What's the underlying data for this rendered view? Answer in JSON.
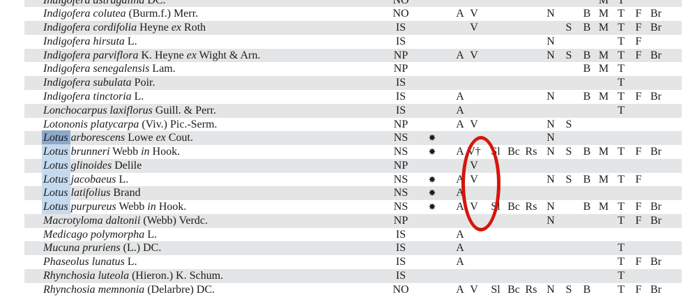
{
  "annotations": {
    "ellipse_color": "#d6150b",
    "search_highlight": {
      "word": "Lotus",
      "current_color": "#8ca8cb",
      "match_color": "#c5d9ef"
    },
    "zebra_color": "#e4e5e6"
  },
  "table": {
    "star_glyph": "✸",
    "dagger_glyph": "†",
    "rows": [
      {
        "name": [
          {
            "t": "Indigofera astragalina",
            "i": 1
          },
          {
            "t": " DC.",
            "i": 0
          }
        ],
        "status": "NO",
        "star": false,
        "marks": [
          "",
          "",
          "",
          "",
          "",
          "",
          "",
          "",
          "M",
          "T",
          "",
          ""
        ]
      },
      {
        "name": [
          {
            "t": "Indigofera colutea",
            "i": 1
          },
          {
            "t": " (Burm.f.) Merr.",
            "i": 0
          }
        ],
        "status": "NO",
        "star": false,
        "marks": [
          "A",
          "V",
          "",
          "",
          "",
          "N",
          "",
          "B",
          "M",
          "T",
          "F",
          "Br"
        ]
      },
      {
        "name": [
          {
            "t": "Indigofera cordifolia",
            "i": 1
          },
          {
            "t": " Heyne ",
            "i": 0
          },
          {
            "t": "ex",
            "i": 1
          },
          {
            "t": " Roth",
            "i": 0
          }
        ],
        "status": "IS",
        "star": false,
        "marks": [
          "",
          "V",
          "",
          "",
          "",
          "",
          "S",
          "B",
          "M",
          "T",
          "F",
          "Br"
        ]
      },
      {
        "name": [
          {
            "t": "Indigofera hirsuta",
            "i": 1
          },
          {
            "t": " L.",
            "i": 0
          }
        ],
        "status": "IS",
        "star": false,
        "marks": [
          "",
          "",
          "",
          "",
          "",
          "N",
          "",
          "",
          "",
          "T",
          "F",
          ""
        ]
      },
      {
        "name": [
          {
            "t": "Indigofera parviflora",
            "i": 1
          },
          {
            "t": " K. Heyne ",
            "i": 0
          },
          {
            "t": "ex",
            "i": 1
          },
          {
            "t": " Wight & Arn.",
            "i": 0
          }
        ],
        "status": "NP",
        "star": false,
        "marks": [
          "A",
          "V",
          "",
          "",
          "",
          "N",
          "S",
          "B",
          "M",
          "T",
          "F",
          "Br"
        ]
      },
      {
        "name": [
          {
            "t": "Indigofera senegalensis",
            "i": 1
          },
          {
            "t": " Lam.",
            "i": 0
          }
        ],
        "status": "NP",
        "star": false,
        "marks": [
          "",
          "",
          "",
          "",
          "",
          "",
          "",
          "B",
          "M",
          "T",
          "",
          ""
        ]
      },
      {
        "name": [
          {
            "t": "Indigofera subulata",
            "i": 1
          },
          {
            "t": " Poir.",
            "i": 0
          }
        ],
        "status": "IS",
        "star": false,
        "marks": [
          "",
          "",
          "",
          "",
          "",
          "",
          "",
          "",
          "",
          "T",
          "",
          ""
        ]
      },
      {
        "name": [
          {
            "t": "Indigofera tinctoria",
            "i": 1
          },
          {
            "t": " L.",
            "i": 0
          }
        ],
        "status": "IS",
        "star": false,
        "marks": [
          "A",
          "",
          "",
          "",
          "",
          "N",
          "",
          "B",
          "M",
          "T",
          "F",
          "Br"
        ]
      },
      {
        "name": [
          {
            "t": "Lonchocarpus laxiflorus",
            "i": 1
          },
          {
            "t": " Guill. & Perr.",
            "i": 0
          }
        ],
        "status": "IS",
        "star": false,
        "marks": [
          "A",
          "",
          "",
          "",
          "",
          "",
          "",
          "",
          "",
          "T",
          "",
          ""
        ]
      },
      {
        "name": [
          {
            "t": "Lotononis platycarpa",
            "i": 1
          },
          {
            "t": " (Viv.) Pic.-Serm.",
            "i": 0
          }
        ],
        "status": "NP",
        "star": false,
        "marks": [
          "A",
          "V",
          "",
          "",
          "",
          "N",
          "S",
          "",
          "",
          "",
          "",
          ""
        ]
      },
      {
        "name": [
          {
            "t": "Lotus",
            "i": 1,
            "h": "current"
          },
          {
            "t": " arborescens",
            "i": 1
          },
          {
            "t": " Lowe ",
            "i": 0
          },
          {
            "t": "ex",
            "i": 1
          },
          {
            "t": " Cout.",
            "i": 0
          }
        ],
        "status": "NS",
        "star": true,
        "marks": [
          "",
          "",
          "",
          "",
          "",
          "N",
          "",
          "",
          "",
          "",
          "",
          ""
        ]
      },
      {
        "name": [
          {
            "t": "Lotus",
            "i": 1,
            "h": "match"
          },
          {
            "t": " brunneri",
            "i": 1
          },
          {
            "t": " Webb ",
            "i": 0
          },
          {
            "t": "in",
            "i": 1
          },
          {
            "t": " Hook.",
            "i": 0
          }
        ],
        "status": "NS",
        "star": true,
        "marks": [
          "A",
          "V†",
          "Sl",
          "Bc",
          "Rs",
          "N",
          "S",
          "B",
          "M",
          "T",
          "F",
          "Br"
        ]
      },
      {
        "name": [
          {
            "t": "Lotus",
            "i": 1,
            "h": "match"
          },
          {
            "t": " glinoides",
            "i": 1
          },
          {
            "t": " Delile",
            "i": 0
          }
        ],
        "status": "NP",
        "star": false,
        "marks": [
          "",
          "V",
          "",
          "",
          "",
          "",
          "",
          "",
          "",
          "",
          "",
          ""
        ]
      },
      {
        "name": [
          {
            "t": "Lotus",
            "i": 1,
            "h": "match"
          },
          {
            "t": " jacobaeus",
            "i": 1
          },
          {
            "t": " L.",
            "i": 0
          }
        ],
        "status": "NS",
        "star": true,
        "marks": [
          "A",
          "V",
          "",
          "",
          "",
          "N",
          "S",
          "B",
          "M",
          "T",
          "F",
          ""
        ]
      },
      {
        "name": [
          {
            "t": "Lotus",
            "i": 1,
            "h": "match"
          },
          {
            "t": " latifolius",
            "i": 1
          },
          {
            "t": " Brand",
            "i": 0
          }
        ],
        "status": "NS",
        "star": true,
        "marks": [
          "A",
          "",
          "",
          "",
          "",
          "",
          "",
          "",
          "",
          "",
          "",
          ""
        ]
      },
      {
        "name": [
          {
            "t": "Lotus",
            "i": 1,
            "h": "match"
          },
          {
            "t": " purpureus",
            "i": 1
          },
          {
            "t": " Webb ",
            "i": 0
          },
          {
            "t": "in",
            "i": 1
          },
          {
            "t": " Hook.",
            "i": 0
          }
        ],
        "status": "NS",
        "star": true,
        "marks": [
          "A",
          "V",
          "Sl",
          "Bc",
          "Rs",
          "N",
          "",
          "B",
          "M",
          "T",
          "F",
          "Br"
        ]
      },
      {
        "name": [
          {
            "t": "Macrotyloma daltonii",
            "i": 1
          },
          {
            "t": " (Webb) Verdc.",
            "i": 0
          }
        ],
        "status": "NP",
        "star": false,
        "marks": [
          "",
          "",
          "",
          "",
          "",
          "N",
          "",
          "",
          "",
          "T",
          "F",
          "Br"
        ]
      },
      {
        "name": [
          {
            "t": "Medicago polymorpha",
            "i": 1
          },
          {
            "t": " L.",
            "i": 0
          }
        ],
        "status": "IS",
        "star": false,
        "marks": [
          "A",
          "",
          "",
          "",
          "",
          "",
          "",
          "",
          "",
          "",
          "",
          ""
        ]
      },
      {
        "name": [
          {
            "t": "Mucuna pruriens",
            "i": 1
          },
          {
            "t": " (L.) DC.",
            "i": 0
          }
        ],
        "status": "IS",
        "star": false,
        "marks": [
          "A",
          "",
          "",
          "",
          "",
          "",
          "",
          "",
          "",
          "T",
          "",
          ""
        ]
      },
      {
        "name": [
          {
            "t": "Phaseolus lunatus",
            "i": 1
          },
          {
            "t": " L.",
            "i": 0
          }
        ],
        "status": "IS",
        "star": false,
        "marks": [
          "A",
          "",
          "",
          "",
          "",
          "",
          "",
          "",
          "",
          "T",
          "F",
          "Br"
        ]
      },
      {
        "name": [
          {
            "t": "Rhynchosia luteola",
            "i": 1
          },
          {
            "t": " (Hieron.) K. Schum.",
            "i": 0
          }
        ],
        "status": "IS",
        "star": false,
        "marks": [
          "",
          "",
          "",
          "",
          "",
          "",
          "",
          "",
          "",
          "T",
          "",
          ""
        ]
      },
      {
        "name": [
          {
            "t": "Rhynchosia memnonia",
            "i": 1
          },
          {
            "t": " (Delarbre) DC.",
            "i": 0
          }
        ],
        "status": "NO",
        "star": false,
        "marks": [
          "A",
          "V",
          "Sl",
          "Bc",
          "Rs",
          "N",
          "S",
          "B",
          "",
          "T",
          "F",
          "Br"
        ]
      }
    ]
  }
}
